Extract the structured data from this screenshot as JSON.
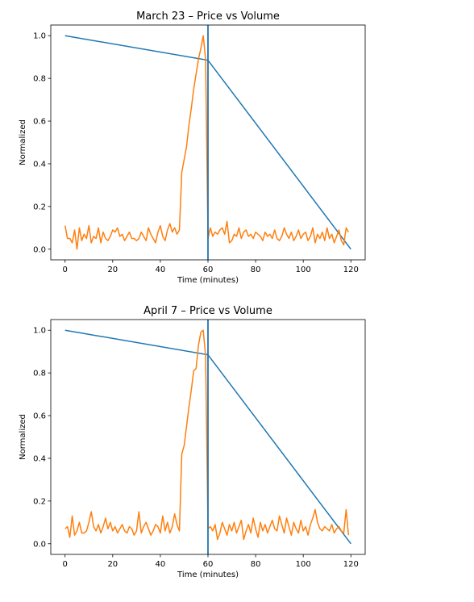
{
  "chart_data": [
    {
      "type": "line",
      "title": "March 23 – Price vs Volume",
      "xlabel": "Time (minutes)",
      "ylabel": "Normalized",
      "xlim": [
        -6,
        126
      ],
      "ylim": [
        -0.05,
        1.05
      ],
      "xticks": [
        0,
        20,
        40,
        60,
        80,
        100,
        120
      ],
      "xtick_labels": [
        "0",
        "20",
        "40",
        "60",
        "80",
        "100",
        "120"
      ],
      "yticks": [
        0.0,
        0.2,
        0.4,
        0.6,
        0.8,
        1.0
      ],
      "ytick_labels": [
        "0.0",
        "0.2",
        "0.4",
        "0.6",
        "0.8",
        "1.0"
      ],
      "vline_x": 60,
      "series": [
        {
          "color": "#1f77b4",
          "x": [
            0,
            60,
            120
          ],
          "y": [
            1.0,
            0.885,
            0.0
          ]
        },
        {
          "color": "#ff7f0e",
          "x": [
            0,
            1,
            2,
            3,
            4,
            5,
            6,
            7,
            8,
            9,
            10,
            11,
            12,
            13,
            14,
            15,
            16,
            17,
            18,
            19,
            20,
            21,
            22,
            23,
            24,
            25,
            26,
            27,
            28,
            29,
            30,
            31,
            32,
            33,
            34,
            35,
            36,
            37,
            38,
            39,
            40,
            41,
            42,
            43,
            44,
            45,
            46,
            47,
            48,
            49,
            50,
            51,
            52,
            53,
            54,
            55,
            56,
            57,
            58,
            59,
            60,
            61,
            62,
            63,
            64,
            65,
            66,
            67,
            68,
            69,
            70,
            71,
            72,
            73,
            74,
            75,
            76,
            77,
            78,
            79,
            80,
            81,
            82,
            83,
            84,
            85,
            86,
            87,
            88,
            89,
            90,
            91,
            92,
            93,
            94,
            95,
            96,
            97,
            98,
            99,
            100,
            101,
            102,
            103,
            104,
            105,
            106,
            107,
            108,
            109,
            110,
            111,
            112,
            113,
            114,
            115,
            116,
            117,
            118,
            119
          ],
          "y": [
            0.11,
            0.05,
            0.05,
            0.03,
            0.09,
            0.0,
            0.1,
            0.04,
            0.07,
            0.05,
            0.11,
            0.03,
            0.06,
            0.05,
            0.1,
            0.03,
            0.08,
            0.05,
            0.04,
            0.06,
            0.09,
            0.08,
            0.1,
            0.06,
            0.07,
            0.04,
            0.06,
            0.08,
            0.05,
            0.05,
            0.04,
            0.05,
            0.08,
            0.06,
            0.04,
            0.1,
            0.07,
            0.05,
            0.03,
            0.08,
            0.11,
            0.06,
            0.04,
            0.09,
            0.12,
            0.08,
            0.1,
            0.07,
            0.09,
            0.36,
            0.42,
            0.48,
            0.58,
            0.66,
            0.75,
            0.82,
            0.89,
            0.94,
            1.0,
            0.89,
            0.05,
            0.1,
            0.06,
            0.08,
            0.07,
            0.09,
            0.1,
            0.07,
            0.13,
            0.03,
            0.04,
            0.07,
            0.06,
            0.1,
            0.05,
            0.08,
            0.09,
            0.06,
            0.07,
            0.05,
            0.08,
            0.07,
            0.06,
            0.04,
            0.08,
            0.06,
            0.07,
            0.05,
            0.09,
            0.05,
            0.04,
            0.06,
            0.1,
            0.07,
            0.05,
            0.08,
            0.04,
            0.06,
            0.09,
            0.05,
            0.07,
            0.08,
            0.04,
            0.06,
            0.1,
            0.03,
            0.07,
            0.05,
            0.08,
            0.04,
            0.1,
            0.05,
            0.07,
            0.03,
            0.06,
            0.09,
            0.04,
            0.02,
            0.1,
            0.08
          ]
        }
      ]
    },
    {
      "type": "line",
      "title": "April 7 – Price vs Volume",
      "xlabel": "Time (minutes)",
      "ylabel": "Normalized",
      "xlim": [
        -6,
        126
      ],
      "ylim": [
        -0.05,
        1.05
      ],
      "xticks": [
        0,
        20,
        40,
        60,
        80,
        100,
        120
      ],
      "xtick_labels": [
        "0",
        "20",
        "40",
        "60",
        "80",
        "100",
        "120"
      ],
      "yticks": [
        0.0,
        0.2,
        0.4,
        0.6,
        0.8,
        1.0
      ],
      "ytick_labels": [
        "0.0",
        "0.2",
        "0.4",
        "0.6",
        "0.8",
        "1.0"
      ],
      "vline_x": 60,
      "series": [
        {
          "color": "#1f77b4",
          "x": [
            0,
            60,
            120
          ],
          "y": [
            1.0,
            0.885,
            0.0
          ]
        },
        {
          "color": "#ff7f0e",
          "x": [
            0,
            1,
            2,
            3,
            4,
            5,
            6,
            7,
            8,
            9,
            10,
            11,
            12,
            13,
            14,
            15,
            16,
            17,
            18,
            19,
            20,
            21,
            22,
            23,
            24,
            25,
            26,
            27,
            28,
            29,
            30,
            31,
            32,
            33,
            34,
            35,
            36,
            37,
            38,
            39,
            40,
            41,
            42,
            43,
            44,
            45,
            46,
            47,
            48,
            49,
            50,
            51,
            52,
            53,
            54,
            55,
            56,
            57,
            58,
            59,
            60,
            61,
            62,
            63,
            64,
            65,
            66,
            67,
            68,
            69,
            70,
            71,
            72,
            73,
            74,
            75,
            76,
            77,
            78,
            79,
            80,
            81,
            82,
            83,
            84,
            85,
            86,
            87,
            88,
            89,
            90,
            91,
            92,
            93,
            94,
            95,
            96,
            97,
            98,
            99,
            100,
            101,
            102,
            103,
            104,
            105,
            106,
            107,
            108,
            109,
            110,
            111,
            112,
            113,
            114,
            115,
            116,
            117,
            118,
            119
          ],
          "y": [
            0.07,
            0.08,
            0.03,
            0.13,
            0.04,
            0.06,
            0.1,
            0.05,
            0.05,
            0.06,
            0.1,
            0.15,
            0.08,
            0.06,
            0.09,
            0.05,
            0.08,
            0.12,
            0.07,
            0.1,
            0.06,
            0.08,
            0.05,
            0.07,
            0.09,
            0.06,
            0.05,
            0.08,
            0.07,
            0.04,
            0.06,
            0.15,
            0.05,
            0.08,
            0.1,
            0.07,
            0.04,
            0.06,
            0.09,
            0.08,
            0.05,
            0.13,
            0.06,
            0.1,
            0.05,
            0.08,
            0.14,
            0.09,
            0.06,
            0.42,
            0.46,
            0.55,
            0.64,
            0.72,
            0.81,
            0.82,
            0.93,
            0.99,
            1.0,
            0.88,
            0.07,
            0.08,
            0.06,
            0.09,
            0.02,
            0.05,
            0.1,
            0.07,
            0.04,
            0.09,
            0.06,
            0.1,
            0.05,
            0.08,
            0.11,
            0.02,
            0.06,
            0.09,
            0.05,
            0.12,
            0.07,
            0.03,
            0.1,
            0.06,
            0.09,
            0.05,
            0.08,
            0.11,
            0.07,
            0.06,
            0.13,
            0.09,
            0.05,
            0.12,
            0.08,
            0.04,
            0.1,
            0.07,
            0.05,
            0.11,
            0.06,
            0.08,
            0.04,
            0.09,
            0.12,
            0.16,
            0.1,
            0.07,
            0.06,
            0.08,
            0.07,
            0.06,
            0.09,
            0.05,
            0.07,
            0.08,
            0.06,
            0.05,
            0.16,
            0.04
          ]
        }
      ]
    }
  ]
}
